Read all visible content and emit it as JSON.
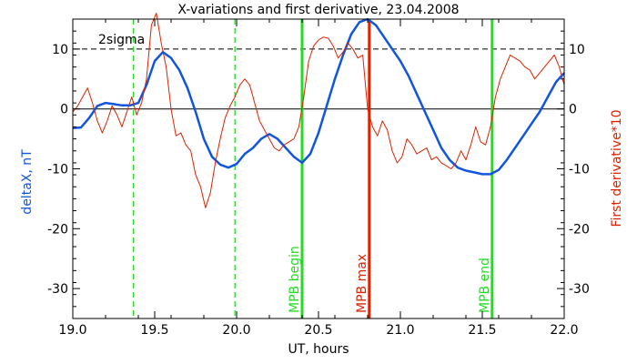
{
  "chart_data": {
    "type": "line",
    "title": "X-variations and first derivative, 23.04.2008",
    "xlabel": "UT, hours",
    "ylabel_left": "deltaX, nT",
    "ylabel_right": "First derivative*10",
    "xlim": [
      19.0,
      22.0
    ],
    "ylim": [
      -35,
      15
    ],
    "x_ticks": [
      19.0,
      19.5,
      20.0,
      20.5,
      21.0,
      21.5,
      22.0
    ],
    "y_ticks": [
      -30,
      -20,
      -10,
      0,
      10
    ],
    "grid": false,
    "colors": {
      "deltax": "#1155dd",
      "derivative": "#dd2200",
      "marker_green": "#22dd22",
      "marker_red": "#dd2200",
      "axis": "#000000"
    },
    "series": [
      {
        "name": "deltaX, nT",
        "color": "#1155dd",
        "x": [
          19.0,
          19.05,
          19.1,
          19.15,
          19.2,
          19.25,
          19.3,
          19.35,
          19.4,
          19.45,
          19.5,
          19.55,
          19.6,
          19.65,
          19.7,
          19.75,
          19.8,
          19.85,
          19.9,
          19.95,
          20.0,
          20.05,
          20.1,
          20.15,
          20.2,
          20.25,
          20.3,
          20.35,
          20.4,
          20.45,
          20.5,
          20.55,
          20.6,
          20.65,
          20.7,
          20.75,
          20.8,
          20.85,
          20.9,
          20.95,
          21.0,
          21.05,
          21.1,
          21.15,
          21.2,
          21.25,
          21.3,
          21.35,
          21.4,
          21.45,
          21.5,
          21.55,
          21.6,
          21.65,
          21.7,
          21.75,
          21.8,
          21.85,
          21.9,
          21.95,
          22.0
        ],
        "values": [
          -3.2,
          -3.1,
          -1.5,
          0.5,
          1.0,
          0.8,
          0.6,
          0.6,
          1.0,
          4.0,
          8.0,
          9.5,
          8.5,
          6.5,
          3.5,
          -0.5,
          -5.0,
          -8.0,
          -9.3,
          -9.8,
          -9.2,
          -7.5,
          -6.5,
          -5.0,
          -4.2,
          -5.0,
          -6.5,
          -8.0,
          -9.0,
          -7.5,
          -4.0,
          0.5,
          5.0,
          9.0,
          12.5,
          14.5,
          15.0,
          14.0,
          12.0,
          10.0,
          8.0,
          5.5,
          2.5,
          -0.5,
          -3.5,
          -6.5,
          -8.5,
          -9.8,
          -10.3,
          -10.6,
          -10.9,
          -10.9,
          -10.2,
          -8.5,
          -6.5,
          -4.5,
          -2.5,
          -0.5,
          2.0,
          4.5,
          6.0
        ]
      },
      {
        "name": "First derivative*10",
        "color": "#dd2200",
        "x": [
          19.0,
          19.03,
          19.06,
          19.09,
          19.12,
          19.15,
          19.18,
          19.21,
          19.24,
          19.27,
          19.3,
          19.33,
          19.36,
          19.39,
          19.42,
          19.45,
          19.48,
          19.51,
          19.54,
          19.57,
          19.6,
          19.63,
          19.66,
          19.69,
          19.72,
          19.75,
          19.78,
          19.81,
          19.84,
          19.87,
          19.9,
          19.93,
          19.96,
          19.99,
          20.02,
          20.05,
          20.08,
          20.11,
          20.14,
          20.17,
          20.2,
          20.23,
          20.26,
          20.29,
          20.32,
          20.35,
          20.38,
          20.41,
          20.44,
          20.47,
          20.5,
          20.53,
          20.56,
          20.59,
          20.62,
          20.65,
          20.68,
          20.71,
          20.74,
          20.77,
          20.8,
          20.83,
          20.86,
          20.89,
          20.92,
          20.95,
          20.98,
          21.01,
          21.04,
          21.07,
          21.1,
          21.13,
          21.16,
          21.19,
          21.22,
          21.25,
          21.28,
          21.31,
          21.34,
          21.37,
          21.4,
          21.43,
          21.46,
          21.49,
          21.52,
          21.55,
          21.58,
          21.61,
          21.64,
          21.67,
          21.7,
          21.73,
          21.76,
          21.79,
          21.82,
          21.85,
          21.88,
          21.91,
          21.94,
          21.97,
          22.0
        ],
        "values": [
          -0.5,
          0.5,
          2.0,
          3.5,
          1.0,
          -2.0,
          -4.0,
          -2.0,
          0.5,
          -1.0,
          -3.0,
          -0.5,
          2.0,
          -1.0,
          1.0,
          5.0,
          14.0,
          16.0,
          11.0,
          7.0,
          0.0,
          -4.5,
          -4.0,
          -6.0,
          -7.0,
          -11.0,
          -13.0,
          -16.5,
          -14.0,
          -9.0,
          -5.0,
          -1.5,
          0.5,
          2.0,
          4.0,
          5.0,
          4.0,
          1.0,
          -2.0,
          -3.5,
          -5.0,
          -6.5,
          -7.0,
          -6.0,
          -5.5,
          -5.0,
          -3.0,
          2.0,
          8.0,
          10.5,
          11.5,
          12.0,
          11.8,
          10.5,
          8.5,
          9.5,
          11.0,
          10.0,
          8.5,
          9.0,
          0.0,
          -3.0,
          -4.5,
          -2.0,
          -3.5,
          -7.0,
          -9.0,
          -8.0,
          -5.0,
          -6.0,
          -7.5,
          -7.0,
          -6.5,
          -8.5,
          -8.0,
          -9.0,
          -9.5,
          -10.0,
          -9.0,
          -7.0,
          -8.5,
          -6.0,
          -3.0,
          -5.5,
          -6.0,
          -3.0,
          2.0,
          5.0,
          7.0,
          9.0,
          8.5,
          8.0,
          7.0,
          6.5,
          5.0,
          6.0,
          7.0,
          8.0,
          9.0,
          7.0,
          4.0
        ]
      }
    ],
    "reference_lines": {
      "zero": 0,
      "sigma_level": 10,
      "sigma_label": "2sigma",
      "dashed_green_x": [
        19.37,
        19.99
      ]
    },
    "markers": [
      {
        "x": 20.4,
        "label": "MPB begin",
        "color": "#22dd22"
      },
      {
        "x": 20.81,
        "label": "MPB max",
        "color": "#dd2200"
      },
      {
        "x": 21.56,
        "label": "MPB end",
        "color": "#22dd22"
      }
    ]
  }
}
